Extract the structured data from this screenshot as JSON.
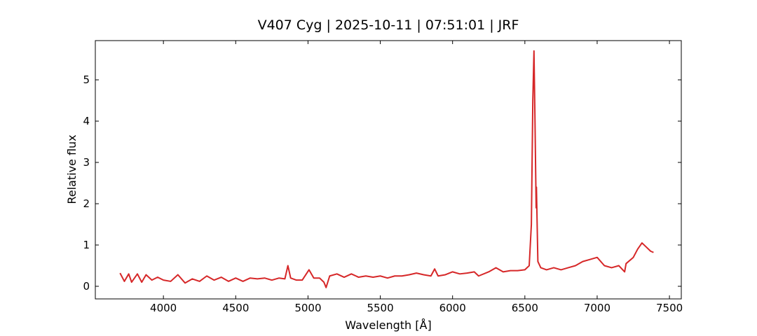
{
  "chart_data": {
    "type": "line",
    "title": "V407 Cyg | 2025-10-11 | 07:51:01 | JRF",
    "xlabel": "Wavelength [Å]",
    "ylabel": "Relative flux",
    "xlim": [
      3529,
      7582
    ],
    "ylim": [
      -0.305,
      5.95
    ],
    "xticks": [
      4000,
      4500,
      5000,
      5500,
      6000,
      6500,
      7000,
      7500
    ],
    "yticks": [
      0,
      1,
      2,
      3,
      4,
      5
    ],
    "grid": false,
    "series": [
      {
        "color": "#d62728",
        "x": [
          3700,
          3730,
          3760,
          3780,
          3820,
          3850,
          3880,
          3920,
          3960,
          4000,
          4050,
          4100,
          4150,
          4200,
          4250,
          4300,
          4350,
          4400,
          4450,
          4500,
          4550,
          4600,
          4650,
          4700,
          4750,
          4800,
          4840,
          4861,
          4880,
          4920,
          4960,
          5007,
          5040,
          5080,
          5110,
          5125,
          5150,
          5200,
          5250,
          5300,
          5350,
          5400,
          5450,
          5500,
          5550,
          5600,
          5650,
          5700,
          5750,
          5800,
          5850,
          5876,
          5900,
          5950,
          6000,
          6050,
          6100,
          6150,
          6180,
          6250,
          6300,
          6350,
          6400,
          6450,
          6500,
          6530,
          6545,
          6555,
          6563,
          6570,
          6578,
          6580,
          6590,
          6610,
          6650,
          6700,
          6750,
          6800,
          6850,
          6900,
          6950,
          7000,
          7050,
          7100,
          7150,
          7190,
          7200,
          7250,
          7280,
          7310,
          7340,
          7370,
          7390
        ],
        "values": [
          0.32,
          0.12,
          0.3,
          0.1,
          0.3,
          0.1,
          0.28,
          0.15,
          0.22,
          0.15,
          0.12,
          0.28,
          0.08,
          0.18,
          0.12,
          0.25,
          0.15,
          0.22,
          0.12,
          0.2,
          0.12,
          0.2,
          0.18,
          0.2,
          0.15,
          0.2,
          0.18,
          0.5,
          0.2,
          0.15,
          0.15,
          0.4,
          0.2,
          0.2,
          0.1,
          -0.03,
          0.25,
          0.3,
          0.22,
          0.3,
          0.22,
          0.25,
          0.22,
          0.25,
          0.2,
          0.25,
          0.25,
          0.28,
          0.32,
          0.28,
          0.25,
          0.42,
          0.25,
          0.28,
          0.35,
          0.3,
          0.32,
          0.35,
          0.25,
          0.35,
          0.45,
          0.35,
          0.38,
          0.38,
          0.4,
          0.5,
          1.5,
          4.5,
          5.7,
          4.0,
          1.9,
          2.4,
          0.6,
          0.45,
          0.4,
          0.45,
          0.4,
          0.45,
          0.5,
          0.6,
          0.65,
          0.7,
          0.5,
          0.45,
          0.5,
          0.35,
          0.55,
          0.7,
          0.9,
          1.05,
          0.95,
          0.85,
          0.82
        ]
      }
    ]
  }
}
